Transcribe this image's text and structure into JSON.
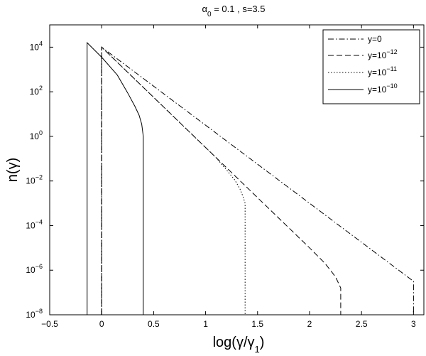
{
  "chart_data": {
    "type": "line",
    "title_parts": {
      "greek": "α",
      "sub": "0",
      "rest": " = 0.1 , s=3.5"
    },
    "xlabel_parts": {
      "pre": "log(γ/γ",
      "sub": "1",
      "post": ")"
    },
    "ylabel": "n(γ)",
    "xlim": [
      -0.5,
      3.1
    ],
    "ylim_log10": [
      -8,
      5
    ],
    "y_scale": "log",
    "x_ticks": [
      "−0.5",
      "0",
      "0.5",
      "1",
      "1.5",
      "2",
      "2.5",
      "3"
    ],
    "x_tick_values": [
      -0.5,
      0,
      0.5,
      1,
      1.5,
      2,
      2.5,
      3
    ],
    "y_tick_exponents": [
      "4",
      "2",
      "0",
      "−2",
      "−4",
      "−6",
      "−8"
    ],
    "y_tick_values": [
      4,
      2,
      0,
      -2,
      -4,
      -6,
      -8
    ],
    "legend_position": "top-right",
    "series": [
      {
        "name_base": "y=0",
        "name_exp": "",
        "style": "dashdot",
        "x": [
          0,
          0,
          3.0,
          3.0
        ],
        "log10_y": [
          -8,
          4.0,
          -6.5,
          -8
        ]
      },
      {
        "name_base": "y=10",
        "name_exp": "−12",
        "style": "dashed",
        "x": [
          0,
          0,
          1.0,
          1.5,
          2.0,
          2.15,
          2.25,
          2.3,
          2.3
        ],
        "log10_y": [
          -8,
          4.0,
          -0.5,
          -2.75,
          -5.0,
          -5.7,
          -6.3,
          -6.8,
          -8
        ]
      },
      {
        "name_base": "y=10",
        "name_exp": "−11",
        "style": "dotted",
        "x": [
          0,
          0,
          0.5,
          0.9,
          1.1,
          1.2,
          1.28,
          1.33,
          1.36,
          1.38,
          1.38
        ],
        "log10_y": [
          -8,
          4.0,
          1.75,
          -0.05,
          -0.95,
          -1.5,
          -1.95,
          -2.35,
          -2.7,
          -3.0,
          -8
        ]
      },
      {
        "name_base": "y=10",
        "name_exp": "−10",
        "style": "solid",
        "x": [
          -0.14,
          -0.14,
          0.0,
          0.15,
          0.25,
          0.32,
          0.36,
          0.385,
          0.4,
          0.4
        ],
        "log10_y": [
          -8,
          4.2,
          3.55,
          2.75,
          1.95,
          1.35,
          0.95,
          0.55,
          0.0,
          -8
        ]
      }
    ]
  }
}
